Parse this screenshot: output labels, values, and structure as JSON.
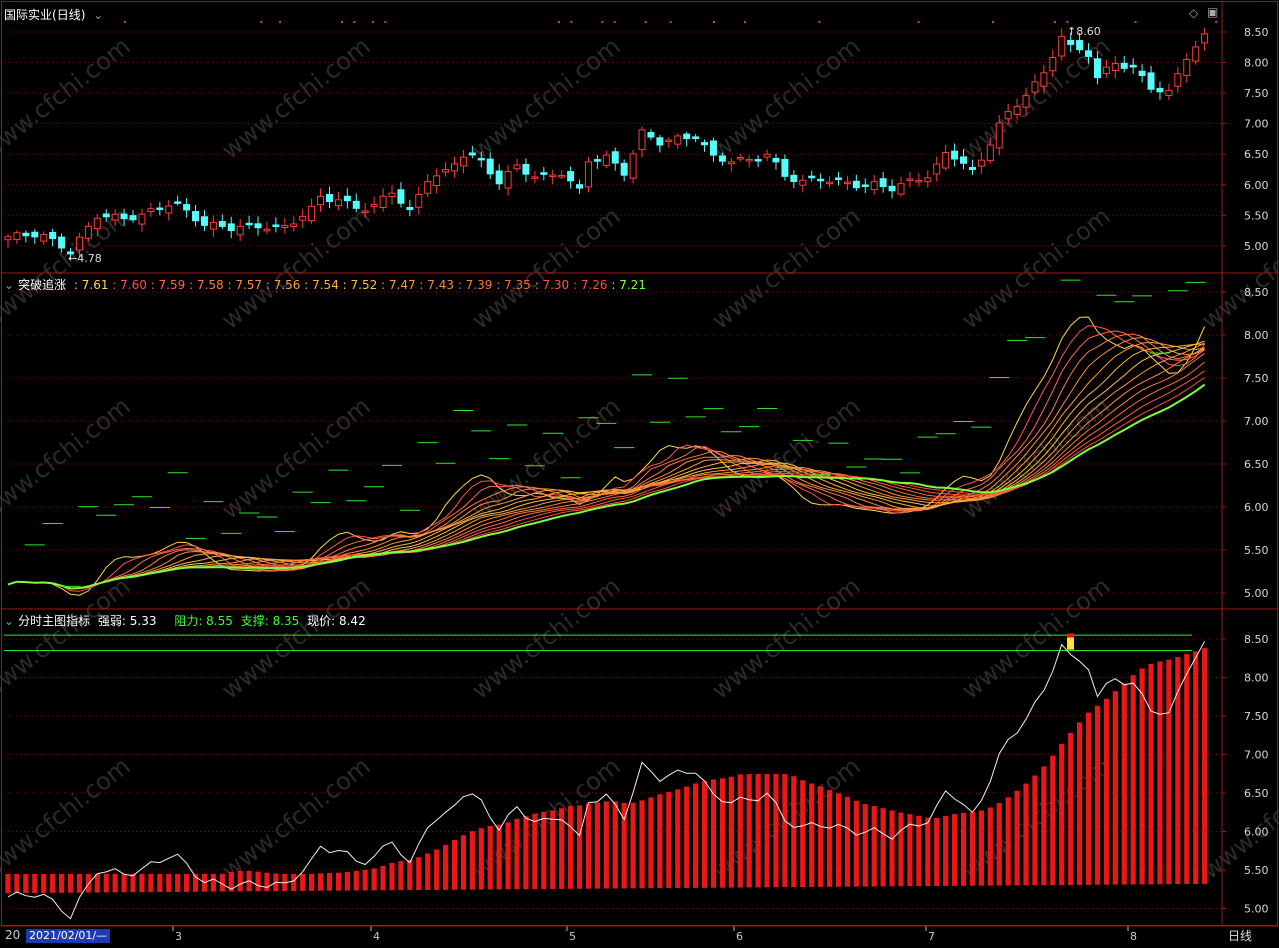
{
  "header": {
    "stock_name": "国际实业",
    "period": "(日线)",
    "panel2_title": "突破追涨",
    "panel2_values": [
      {
        "text": "7.61",
        "color": "#ffd84d"
      },
      {
        "text": "7.60",
        "color": "#ff5252"
      },
      {
        "text": "7.59",
        "color": "#ff6b4a"
      },
      {
        "text": "7.58",
        "color": "#ff7b45"
      },
      {
        "text": "7.57",
        "color": "#ff8c40"
      },
      {
        "text": "7.56",
        "color": "#ff9c3c"
      },
      {
        "text": "7.54",
        "color": "#ffb33a"
      },
      {
        "text": "7.52",
        "color": "#ffc23a"
      },
      {
        "text": "7.47",
        "color": "#ff9a3a"
      },
      {
        "text": "7.43",
        "color": "#ff8a3a"
      },
      {
        "text": "7.39",
        "color": "#ff7a3a"
      },
      {
        "text": "7.35",
        "color": "#ff6a3a"
      },
      {
        "text": "7.30",
        "color": "#ff5a3a"
      },
      {
        "text": "7.26",
        "color": "#ff4a3a"
      },
      {
        "text": "7.21",
        "color": "#7cff3a"
      }
    ],
    "panel3_title": "分时主图指标",
    "strength_label": "强弱: 5.33",
    "resistance_label": "阻力: 8.55",
    "support_label": "支撑: 8.35",
    "price_label": "现价: 8.42"
  },
  "annotations": {
    "high": "8.60",
    "low": "4.78"
  },
  "axis": {
    "panel1_ticks": [
      "8.50",
      "8.00",
      "7.50",
      "7.00",
      "6.50",
      "6.00",
      "5.50",
      "5.00"
    ],
    "panel2_ticks": [
      "8.50",
      "8.00",
      "7.50",
      "7.00",
      "6.50",
      "6.00",
      "5.50",
      "5.00"
    ],
    "panel3_ticks": [
      "8.50",
      "8.00",
      "7.50",
      "7.00",
      "6.50",
      "6.00",
      "5.50",
      "5.00"
    ],
    "months": [
      "3",
      "4",
      "5",
      "6",
      "7",
      "8"
    ],
    "left_year_fragment": "20"
  },
  "bottom": {
    "date_box": "2021/02/01/—",
    "period_button": "日线"
  },
  "watermark": "www.cfchi.com",
  "colors": {
    "up": "#ff3b3b",
    "down": "#54fcfc",
    "border": "#a01818",
    "grid": "#6a0e0e"
  }
}
